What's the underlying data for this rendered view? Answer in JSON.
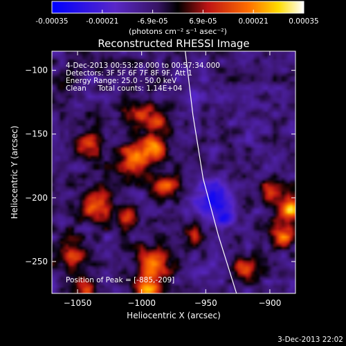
{
  "colorbar": {
    "tick_labels": [
      "-0.00035",
      "-0.00021",
      "-6.9e-05",
      "6.9e-05",
      "0.00021",
      "0.00035"
    ],
    "range": [
      -0.00035,
      0.00035
    ],
    "unit_label": "(photons cm⁻² s⁻¹ asec⁻²)"
  },
  "chart_data": {
    "type": "heatmap",
    "title": "Reconstructed RHESSI Image",
    "xlabel": "Heliocentric X (arcsec)",
    "ylabel": "Heliocentric Y (arcsec)",
    "xlim": [
      -1070,
      -880
    ],
    "ylim": [
      -275,
      -85
    ],
    "x_ticks": [
      -1050,
      -1000,
      -950,
      -900
    ],
    "y_ticks": [
      -100,
      -150,
      -200,
      -250
    ],
    "x_tick_labels": [
      "−1050",
      "−1000",
      "−950",
      "−900"
    ],
    "y_tick_labels": [
      "−100",
      "−150",
      "−200",
      "−250"
    ],
    "annotations": {
      "time": "4-Dec-2013 00:53:28.000 to 00:57:34.000",
      "detectors": "Detectors: 3F 5F 6F 7F 8F 9F, Att 1",
      "energy": "Energy Range: 25.0 - 50.0 keV",
      "clean": "Clean     Total counts: 1.14E+04",
      "peak": "Position of Peak = [-885,-209]"
    },
    "peak_position": [
      -885,
      -209
    ],
    "limb_curve": [
      [
        -966,
        -85
      ],
      [
        -960,
        -135
      ],
      [
        -952,
        -185
      ],
      [
        -940,
        -230
      ],
      [
        -926,
        -275
      ]
    ],
    "blobs": [
      {
        "x": -1000,
        "y": -135,
        "w": 12,
        "v": 0.55
      },
      {
        "x": -985,
        "y": -140,
        "w": 8,
        "v": 0.45
      },
      {
        "x": -1040,
        "y": -158,
        "w": 11,
        "v": 0.55
      },
      {
        "x": -1005,
        "y": -170,
        "w": 14,
        "v": 0.8
      },
      {
        "x": -990,
        "y": -160,
        "w": 10,
        "v": 0.7
      },
      {
        "x": -980,
        "y": -190,
        "w": 10,
        "v": 0.65
      },
      {
        "x": -1035,
        "y": -205,
        "w": 12,
        "v": 0.8
      },
      {
        "x": -1010,
        "y": -215,
        "w": 9,
        "v": 0.55
      },
      {
        "x": -885,
        "y": -209,
        "w": 10,
        "v": 1.0
      },
      {
        "x": -890,
        "y": -230,
        "w": 9,
        "v": 0.7
      },
      {
        "x": -900,
        "y": -195,
        "w": 8,
        "v": 0.5
      },
      {
        "x": -1055,
        "y": -245,
        "w": 12,
        "v": 0.6
      },
      {
        "x": -990,
        "y": -250,
        "w": 12,
        "v": 0.85
      },
      {
        "x": -995,
        "y": -270,
        "w": 10,
        "v": 0.9
      },
      {
        "x": -1045,
        "y": -272,
        "w": 10,
        "v": 0.55
      },
      {
        "x": -960,
        "y": -230,
        "w": 8,
        "v": 0.45
      },
      {
        "x": -920,
        "y": -255,
        "w": 9,
        "v": 0.55
      },
      {
        "x": -945,
        "y": -200,
        "w": 14,
        "v": -0.6
      },
      {
        "x": -935,
        "y": -215,
        "w": 10,
        "v": -0.45
      },
      {
        "x": -960,
        "y": -120,
        "w": 10,
        "v": -0.25
      },
      {
        "x": -1060,
        "y": -110,
        "w": 10,
        "v": 0.25
      }
    ]
  },
  "footer": {
    "timestamp": "3-Dec-2013 22:02"
  }
}
